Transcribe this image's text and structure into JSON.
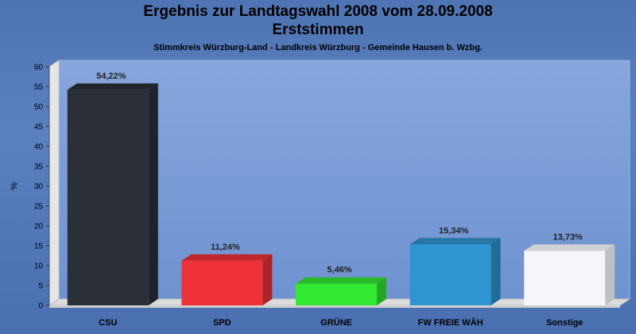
{
  "chart_data": {
    "type": "bar",
    "title": "Ergebnis zur Landtagswahl 2008 vom 28.09.2008",
    "subtitle": "Erststimmen",
    "caption": "Stimmkreis Würzburg-Land - Landkreis Würzburg - Gemeinde Hausen b. Wzbg.",
    "ylabel": "%",
    "xlabel": "",
    "ylim": [
      0,
      60
    ],
    "yticks": [
      "0",
      "5",
      "10",
      "15",
      "20",
      "25",
      "30",
      "35",
      "40",
      "45",
      "50",
      "55",
      "60"
    ],
    "categories": [
      "CSU",
      "SPD",
      "GRÜNE",
      "FW FREIE WÄH",
      "Sonstige"
    ],
    "values": [
      54.22,
      11.24,
      5.46,
      15.34,
      13.73
    ],
    "value_labels": [
      "54,22%",
      "11,24%",
      "5,46%",
      "15,34%",
      "13,73%"
    ],
    "colors": [
      "#2b2f37",
      "#ee3237",
      "#33e833",
      "#2f95d0",
      "#f4f6fb"
    ]
  }
}
